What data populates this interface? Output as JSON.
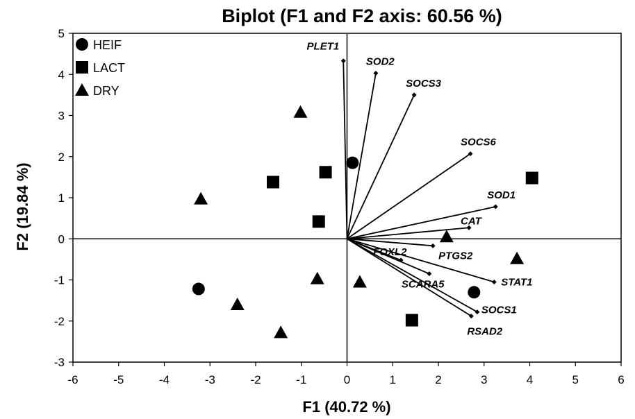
{
  "chart_data": {
    "type": "scatter",
    "title": "Biplot (F1 and F2 axis: 60.56 %)",
    "xlabel": "F1 (40.72 %)",
    "ylabel": "F2 (19.84 %)",
    "xlim": [
      -6,
      6
    ],
    "ylim": [
      -3,
      5
    ],
    "xticks": [
      -6,
      -5,
      -4,
      -3,
      -2,
      -1,
      0,
      1,
      2,
      3,
      4,
      5,
      6
    ],
    "yticks": [
      -3,
      -2,
      -1,
      0,
      1,
      2,
      3,
      4,
      5
    ],
    "grid": false,
    "legend_position": "top-left",
    "series": [
      {
        "name": "HEIF",
        "marker": "circle",
        "color": "#000000",
        "points": [
          {
            "x": 0.12,
            "y": 1.85
          },
          {
            "x": -3.25,
            "y": -1.22
          },
          {
            "x": 2.78,
            "y": -1.3
          }
        ]
      },
      {
        "name": "LACT",
        "marker": "square",
        "color": "#000000",
        "points": [
          {
            "x": -1.62,
            "y": 1.38
          },
          {
            "x": -0.47,
            "y": 1.62
          },
          {
            "x": -0.62,
            "y": 0.42
          },
          {
            "x": 4.05,
            "y": 1.48
          },
          {
            "x": 1.42,
            "y": -1.98
          }
        ]
      },
      {
        "name": "DRY",
        "marker": "triangle",
        "color": "#000000",
        "points": [
          {
            "x": -1.02,
            "y": 3.08
          },
          {
            "x": -3.2,
            "y": 0.97
          },
          {
            "x": -0.65,
            "y": -0.97
          },
          {
            "x": -2.4,
            "y": -1.6
          },
          {
            "x": -1.45,
            "y": -2.28
          },
          {
            "x": 0.28,
            "y": -1.05
          },
          {
            "x": 2.18,
            "y": 0.05
          },
          {
            "x": 3.72,
            "y": -0.48
          }
        ]
      }
    ],
    "vectors": [
      {
        "label": "PLET1",
        "x": -0.08,
        "y": 4.33
      },
      {
        "label": "SOD2",
        "x": 0.63,
        "y": 4.03
      },
      {
        "label": "SOCS3",
        "x": 1.47,
        "y": 3.5
      },
      {
        "label": "SOCS6",
        "x": 2.7,
        "y": 2.07
      },
      {
        "label": "SOD1",
        "x": 3.25,
        "y": 0.78
      },
      {
        "label": "CAT",
        "x": 2.67,
        "y": 0.27
      },
      {
        "label": "PTGS2",
        "x": 1.88,
        "y": -0.17
      },
      {
        "label": "FOXL2",
        "x": 1.18,
        "y": -0.52
      },
      {
        "label": "SCARA5",
        "x": 1.8,
        "y": -0.85
      },
      {
        "label": "STAT1",
        "x": 3.22,
        "y": -1.05
      },
      {
        "label": "SOCS1",
        "x": 2.85,
        "y": -1.78
      },
      {
        "label": "RSAD2",
        "x": 2.72,
        "y": -1.88
      }
    ]
  }
}
